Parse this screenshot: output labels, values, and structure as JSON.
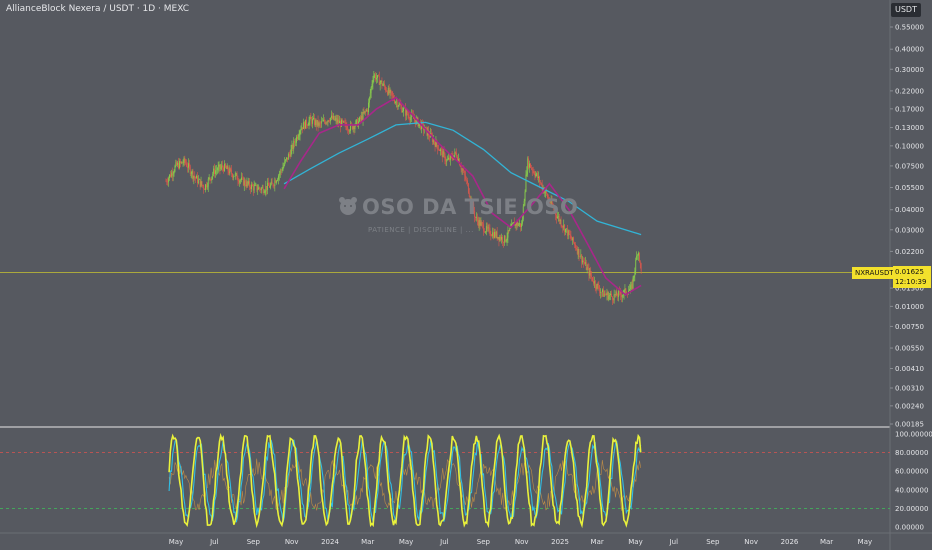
{
  "header": {
    "title": "AllianceBlock Nexera / USDT · 1D · MEXC",
    "unit_label": "USDT"
  },
  "watermark": {
    "text": "OSO DA TSIE OSO",
    "subtext": "PATIENCE | DISCIPLINE | ..."
  },
  "price_marker": {
    "symbol": "NXRAUSDT",
    "price": "0.01625",
    "countdown": "12:10:39"
  },
  "colors": {
    "background": "#565960",
    "grid": "#5f6269",
    "ma_fast": "#a8278a",
    "ma_slow": "#32b4d6",
    "oscillator_k": "#e9f23b",
    "oscillator_d": "#31bde3",
    "level_upper": "#d9534f",
    "level_lower": "#3fbf5a",
    "price_line": "#c9c532"
  },
  "chart_data": [
    {
      "type": "line",
      "scale": "log",
      "y_ticks": [
        "0.55000",
        "0.40000",
        "0.30000",
        "0.22000",
        "0.17000",
        "0.13000",
        "0.10000",
        "0.07500",
        "0.05500",
        "0.04000",
        "0.03000",
        "0.02200",
        "0.01300",
        "0.01000",
        "0.00750",
        "0.00550",
        "0.00410",
        "0.00310",
        "0.00240",
        "0.00185"
      ],
      "x_ticks": [
        "May",
        "Jul",
        "Sep",
        "Nov",
        "2024",
        "Mar",
        "May",
        "Jul",
        "Sep",
        "Nov",
        "2025",
        "Mar",
        "May",
        "Jul",
        "Sep",
        "Nov",
        "2026",
        "Mar",
        "May"
      ],
      "price_series": [
        {
          "date": "2023-04-15",
          "v": 0.06
        },
        {
          "date": "2023-05-01",
          "v": 0.075
        },
        {
          "date": "2023-05-15",
          "v": 0.08
        },
        {
          "date": "2023-06-01",
          "v": 0.063
        },
        {
          "date": "2023-06-15",
          "v": 0.055
        },
        {
          "date": "2023-07-01",
          "v": 0.07
        },
        {
          "date": "2023-07-15",
          "v": 0.074
        },
        {
          "date": "2023-08-01",
          "v": 0.066
        },
        {
          "date": "2023-08-15",
          "v": 0.06
        },
        {
          "date": "2023-09-01",
          "v": 0.055
        },
        {
          "date": "2023-09-15",
          "v": 0.054
        },
        {
          "date": "2023-10-01",
          "v": 0.057
        },
        {
          "date": "2023-10-15",
          "v": 0.07
        },
        {
          "date": "2023-11-01",
          "v": 0.095
        },
        {
          "date": "2023-11-15",
          "v": 0.13
        },
        {
          "date": "2023-12-01",
          "v": 0.145
        },
        {
          "date": "2023-12-15",
          "v": 0.135
        },
        {
          "date": "2024-01-01",
          "v": 0.15
        },
        {
          "date": "2024-01-15",
          "v": 0.14
        },
        {
          "date": "2024-02-01",
          "v": 0.13
        },
        {
          "date": "2024-02-15",
          "v": 0.14
        },
        {
          "date": "2024-03-01",
          "v": 0.17
        },
        {
          "date": "2024-03-10",
          "v": 0.28
        },
        {
          "date": "2024-03-25",
          "v": 0.24
        },
        {
          "date": "2024-04-10",
          "v": 0.2
        },
        {
          "date": "2024-05-01",
          "v": 0.16
        },
        {
          "date": "2024-05-20",
          "v": 0.14
        },
        {
          "date": "2024-06-05",
          "v": 0.12
        },
        {
          "date": "2024-06-20",
          "v": 0.1
        },
        {
          "date": "2024-07-05",
          "v": 0.08
        },
        {
          "date": "2024-07-20",
          "v": 0.09
        },
        {
          "date": "2024-08-05",
          "v": 0.06
        },
        {
          "date": "2024-08-20",
          "v": 0.035
        },
        {
          "date": "2024-09-05",
          "v": 0.03
        },
        {
          "date": "2024-09-20",
          "v": 0.028
        },
        {
          "date": "2024-10-05",
          "v": 0.026
        },
        {
          "date": "2024-10-20",
          "v": 0.033
        },
        {
          "date": "2024-11-01",
          "v": 0.032
        },
        {
          "date": "2024-11-10",
          "v": 0.08
        },
        {
          "date": "2024-11-25",
          "v": 0.065
        },
        {
          "date": "2024-12-10",
          "v": 0.05
        },
        {
          "date": "2024-12-25",
          "v": 0.038
        },
        {
          "date": "2025-01-10",
          "v": 0.03
        },
        {
          "date": "2025-01-25",
          "v": 0.024
        },
        {
          "date": "2025-02-10",
          "v": 0.018
        },
        {
          "date": "2025-02-25",
          "v": 0.014
        },
        {
          "date": "2025-03-10",
          "v": 0.012
        },
        {
          "date": "2025-03-25",
          "v": 0.0115
        },
        {
          "date": "2025-04-10",
          "v": 0.012
        },
        {
          "date": "2025-04-25",
          "v": 0.013
        },
        {
          "date": "2025-05-05",
          "v": 0.023
        },
        {
          "date": "2025-05-10",
          "v": 0.01625
        }
      ],
      "ma_fast_series": [
        {
          "date": "2023-10-20",
          "v": 0.054
        },
        {
          "date": "2023-11-15",
          "v": 0.08
        },
        {
          "date": "2023-12-15",
          "v": 0.12
        },
        {
          "date": "2024-01-15",
          "v": 0.135
        },
        {
          "date": "2024-02-15",
          "v": 0.135
        },
        {
          "date": "2024-03-15",
          "v": 0.17
        },
        {
          "date": "2024-04-15",
          "v": 0.2
        },
        {
          "date": "2024-05-15",
          "v": 0.15
        },
        {
          "date": "2024-06-15",
          "v": 0.11
        },
        {
          "date": "2024-07-15",
          "v": 0.085
        },
        {
          "date": "2024-08-15",
          "v": 0.065
        },
        {
          "date": "2024-09-15",
          "v": 0.038
        },
        {
          "date": "2024-10-15",
          "v": 0.031
        },
        {
          "date": "2024-11-15",
          "v": 0.042
        },
        {
          "date": "2024-12-15",
          "v": 0.058
        },
        {
          "date": "2025-01-15",
          "v": 0.04
        },
        {
          "date": "2025-02-15",
          "v": 0.024
        },
        {
          "date": "2025-03-15",
          "v": 0.015
        },
        {
          "date": "2025-04-15",
          "v": 0.0118
        },
        {
          "date": "2025-05-10",
          "v": 0.0135
        }
      ],
      "ma_slow_series": [
        {
          "date": "2023-10-20",
          "v": 0.058
        },
        {
          "date": "2023-12-01",
          "v": 0.072
        },
        {
          "date": "2024-01-15",
          "v": 0.09
        },
        {
          "date": "2024-03-01",
          "v": 0.11
        },
        {
          "date": "2024-04-15",
          "v": 0.135
        },
        {
          "date": "2024-06-01",
          "v": 0.14
        },
        {
          "date": "2024-07-15",
          "v": 0.125
        },
        {
          "date": "2024-09-01",
          "v": 0.095
        },
        {
          "date": "2024-10-15",
          "v": 0.068
        },
        {
          "date": "2024-12-01",
          "v": 0.055
        },
        {
          "date": "2025-01-15",
          "v": 0.045
        },
        {
          "date": "2025-03-01",
          "v": 0.034
        },
        {
          "date": "2025-05-10",
          "v": 0.028
        }
      ]
    },
    {
      "type": "line",
      "y_ticks": [
        "100.00000",
        "80.00000",
        "60.00000",
        "40.00000",
        "20.00000",
        "0.00000"
      ],
      "upper_level": 80,
      "lower_level": 20
    }
  ]
}
